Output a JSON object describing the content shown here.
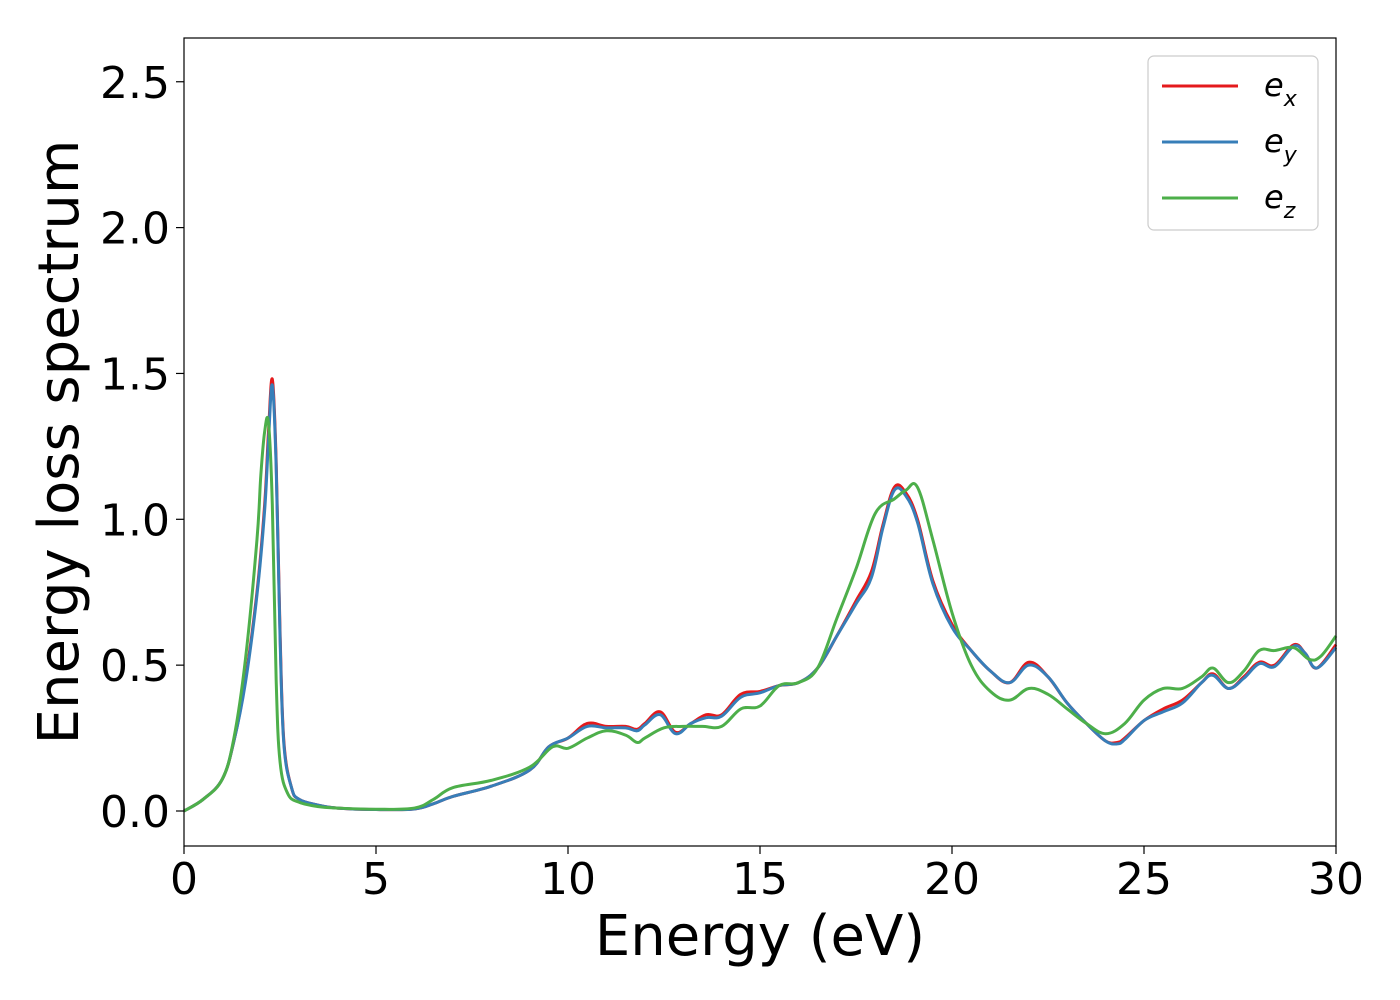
{
  "chart_data": {
    "type": "line",
    "xlabel": "Energy (eV)",
    "ylabel": "Energy loss spectrum",
    "xlim": [
      0,
      30
    ],
    "ylim": [
      -0.12,
      2.65
    ],
    "xticks": [
      0,
      5,
      10,
      15,
      20,
      25,
      30
    ],
    "xtick_labels": [
      "0",
      "5",
      "10",
      "15",
      "20",
      "25",
      "30"
    ],
    "yticks": [
      0.0,
      0.5,
      1.0,
      1.5,
      2.0,
      2.5
    ],
    "ytick_labels": [
      "0.0",
      "0.5",
      "1.0",
      "1.5",
      "2.0",
      "2.5"
    ],
    "grid": false,
    "legend_position": "top-right",
    "series": [
      {
        "name": "e_x",
        "label_main": "e",
        "label_sub": "x",
        "color": "#e41a1c",
        "x": [
          0,
          0.5,
          1.0,
          1.3,
          1.6,
          1.9,
          2.1,
          2.2,
          2.3,
          2.4,
          2.5,
          2.6,
          2.8,
          3.0,
          3.5,
          4,
          5,
          6,
          6.5,
          7,
          8,
          9,
          9.5,
          10,
          10.5,
          11,
          11.5,
          11.8,
          12.0,
          12.4,
          12.8,
          13.2,
          13.6,
          14.0,
          14.5,
          15.0,
          15.5,
          16.0,
          16.5,
          17.0,
          17.5,
          17.9,
          18.2,
          18.5,
          18.8,
          19.1,
          19.5,
          20.0,
          20.5,
          21.0,
          21.5,
          22.0,
          22.5,
          23.0,
          23.5,
          24.0,
          24.3,
          24.5,
          25.0,
          25.5,
          26.0,
          26.5,
          26.8,
          27.2,
          27.6,
          28.0,
          28.4,
          28.9,
          29.2,
          29.5,
          30.0
        ],
        "y": [
          0,
          0.04,
          0.11,
          0.24,
          0.45,
          0.75,
          1.05,
          1.3,
          1.48,
          1.2,
          0.62,
          0.24,
          0.08,
          0.04,
          0.02,
          0.01,
          0.005,
          0.007,
          0.025,
          0.05,
          0.085,
          0.14,
          0.22,
          0.25,
          0.3,
          0.29,
          0.29,
          0.28,
          0.3,
          0.34,
          0.27,
          0.3,
          0.33,
          0.33,
          0.4,
          0.41,
          0.43,
          0.44,
          0.49,
          0.6,
          0.72,
          0.82,
          0.98,
          1.11,
          1.09,
          1.0,
          0.79,
          0.64,
          0.55,
          0.48,
          0.44,
          0.51,
          0.46,
          0.37,
          0.3,
          0.24,
          0.235,
          0.25,
          0.31,
          0.35,
          0.38,
          0.44,
          0.47,
          0.42,
          0.46,
          0.51,
          0.5,
          0.57,
          0.54,
          0.49,
          0.57
        ]
      },
      {
        "name": "e_y",
        "label_main": "e",
        "label_sub": "y",
        "color": "#377eb8",
        "x": [
          0,
          0.5,
          1.0,
          1.3,
          1.6,
          1.9,
          2.1,
          2.2,
          2.3,
          2.4,
          2.5,
          2.6,
          2.8,
          3.0,
          3.5,
          4,
          5,
          6,
          6.5,
          7,
          8,
          9,
          9.5,
          10,
          10.5,
          11,
          11.5,
          11.8,
          12.0,
          12.4,
          12.8,
          13.2,
          13.6,
          14.0,
          14.5,
          15.0,
          15.5,
          16.0,
          16.5,
          17.0,
          17.5,
          17.9,
          18.2,
          18.5,
          18.8,
          19.1,
          19.5,
          20.0,
          20.5,
          21.0,
          21.5,
          22.0,
          22.5,
          23.0,
          23.5,
          24.0,
          24.3,
          24.5,
          25.0,
          25.5,
          26.0,
          26.5,
          26.8,
          27.2,
          27.6,
          28.0,
          28.4,
          28.9,
          29.2,
          29.5,
          30.0
        ],
        "y": [
          0,
          0.04,
          0.11,
          0.24,
          0.44,
          0.74,
          1.03,
          1.27,
          1.46,
          1.18,
          0.6,
          0.23,
          0.08,
          0.04,
          0.02,
          0.01,
          0.005,
          0.007,
          0.025,
          0.05,
          0.085,
          0.14,
          0.22,
          0.25,
          0.29,
          0.285,
          0.285,
          0.275,
          0.295,
          0.33,
          0.265,
          0.3,
          0.32,
          0.325,
          0.39,
          0.405,
          0.43,
          0.44,
          0.49,
          0.6,
          0.71,
          0.8,
          0.97,
          1.1,
          1.08,
          0.99,
          0.78,
          0.63,
          0.55,
          0.48,
          0.44,
          0.5,
          0.46,
          0.37,
          0.3,
          0.24,
          0.23,
          0.245,
          0.31,
          0.34,
          0.37,
          0.44,
          0.465,
          0.42,
          0.455,
          0.505,
          0.495,
          0.565,
          0.54,
          0.49,
          0.56
        ]
      },
      {
        "name": "e_z",
        "label_main": "e",
        "label_sub": "z",
        "color": "#4daf4a",
        "x": [
          0,
          0.5,
          1.0,
          1.3,
          1.6,
          1.9,
          2.0,
          2.1,
          2.2,
          2.3,
          2.4,
          2.5,
          2.7,
          3.0,
          3.5,
          4,
          5,
          6,
          6.5,
          7,
          8,
          9,
          9.6,
          10,
          10.5,
          11,
          11.5,
          11.8,
          12.0,
          12.5,
          13.0,
          13.5,
          14.0,
          14.5,
          15.0,
          15.5,
          16.0,
          16.5,
          17.0,
          17.5,
          18.0,
          18.5,
          18.8,
          19.1,
          19.5,
          20.0,
          20.5,
          21.0,
          21.5,
          22.0,
          22.5,
          23.0,
          23.5,
          24.0,
          24.5,
          25.0,
          25.5,
          26.0,
          26.5,
          26.8,
          27.2,
          27.6,
          28.0,
          28.4,
          28.9,
          29.3,
          29.6,
          30.0
        ],
        "y": [
          0,
          0.04,
          0.11,
          0.25,
          0.52,
          0.93,
          1.15,
          1.3,
          1.33,
          1.05,
          0.45,
          0.17,
          0.06,
          0.03,
          0.015,
          0.01,
          0.006,
          0.01,
          0.04,
          0.08,
          0.105,
          0.15,
          0.22,
          0.215,
          0.25,
          0.275,
          0.26,
          0.235,
          0.25,
          0.285,
          0.29,
          0.29,
          0.29,
          0.35,
          0.36,
          0.43,
          0.44,
          0.49,
          0.66,
          0.83,
          1.02,
          1.07,
          1.1,
          1.11,
          0.93,
          0.68,
          0.5,
          0.41,
          0.38,
          0.42,
          0.4,
          0.35,
          0.3,
          0.265,
          0.3,
          0.38,
          0.42,
          0.42,
          0.46,
          0.49,
          0.44,
          0.48,
          0.55,
          0.55,
          0.56,
          0.52,
          0.53,
          0.6
        ]
      }
    ]
  }
}
